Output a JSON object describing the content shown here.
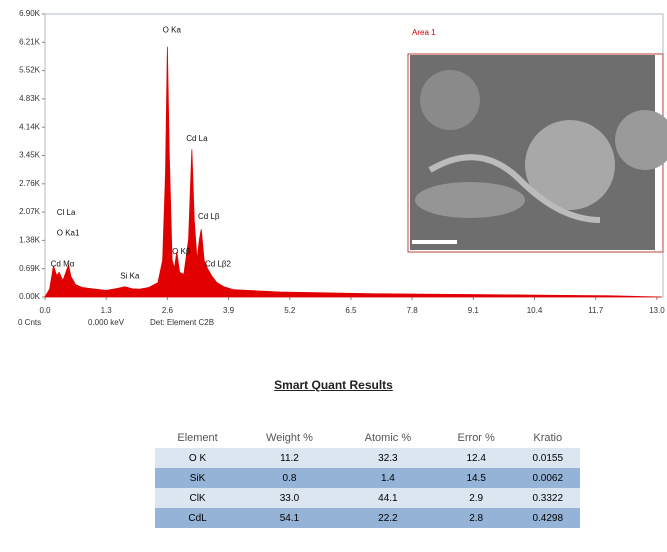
{
  "chart_data": {
    "type": "area",
    "color": "#e00000",
    "x": [
      0.0,
      0.1,
      0.18,
      0.25,
      0.3,
      0.38,
      0.5,
      0.55,
      0.65,
      0.8,
      1.0,
      1.3,
      1.5,
      1.7,
      1.85,
      2.0,
      2.2,
      2.4,
      2.5,
      2.56,
      2.6,
      2.64,
      2.7,
      2.75,
      2.8,
      2.86,
      2.95,
      3.05,
      3.12,
      3.17,
      3.23,
      3.28,
      3.32,
      3.38,
      3.45,
      3.55,
      3.65,
      3.8,
      4.0,
      4.5,
      5.0,
      6.0,
      7.0,
      8.0,
      9.0,
      10.0,
      11.0,
      12.0,
      13.1
    ],
    "values": [
      0,
      200,
      760,
      520,
      600,
      400,
      780,
      500,
      300,
      230,
      200,
      160,
      200,
      250,
      200,
      190,
      230,
      350,
      900,
      3000,
      6100,
      3500,
      900,
      700,
      1100,
      600,
      550,
      1400,
      3600,
      1900,
      900,
      1400,
      1650,
      900,
      700,
      500,
      350,
      250,
      180,
      150,
      120,
      100,
      80,
      70,
      60,
      50,
      40,
      30,
      0
    ],
    "xlim": [
      0,
      13.13
    ],
    "ylim": [
      0,
      6900
    ],
    "xticks": [
      {
        "value": 0,
        "label": "0.0"
      },
      1.3,
      2.6,
      3.9,
      5.2,
      6.5,
      7.8,
      9.1,
      10.4,
      11.7,
      {
        "value": 13,
        "label": "13.0"
      }
    ],
    "yticks": [
      {
        "value": 0,
        "label": "0.00K"
      },
      {
        "value": 690,
        "label": "0.69K"
      },
      {
        "value": 1380,
        "label": "1.38K"
      },
      {
        "value": 2070,
        "label": "2.07K"
      },
      {
        "value": 2760,
        "label": "2.76K"
      },
      {
        "value": 3450,
        "label": "3.45K"
      },
      {
        "value": 4140,
        "label": "4.14K"
      },
      {
        "value": 4830,
        "label": "4.83K"
      },
      {
        "value": 5520,
        "label": "5.52K"
      },
      {
        "value": 6210,
        "label": "6.21K"
      },
      {
        "value": 6900,
        "label": "6.90K"
      }
    ],
    "annotations": [
      {
        "text": "O Ka",
        "x": 2.5,
        "y": 6500
      },
      {
        "text": "Cd La",
        "x": 3.0,
        "y": 3850
      },
      {
        "text": "Cd Lβ",
        "x": 3.25,
        "y": 1950
      },
      {
        "text": "Cl La",
        "x": 0.25,
        "y": 2050
      },
      {
        "text": "O Ka1",
        "x": 0.25,
        "y": 1550
      },
      {
        "text": "Cd Mα",
        "x": 0.12,
        "y": 800
      },
      {
        "text": "Si Ka",
        "x": 1.6,
        "y": 500
      },
      {
        "text": "O Kβ",
        "x": 2.7,
        "y": 1100
      },
      {
        "text": "Cd Lβ2",
        "x": 3.4,
        "y": 800
      }
    ],
    "inset_label": "Area 1",
    "footer": [
      "0 Cnts",
      "0.000 keV",
      "Det: Element C2B"
    ]
  },
  "results": {
    "title": "Smart Quant Results",
    "columns": [
      "Element",
      "Weight %",
      "Atomic %",
      "Error %",
      "Kratio"
    ],
    "rows": [
      [
        "O K",
        "11.2",
        "32.3",
        "12.4",
        "0.0155"
      ],
      [
        "SiK",
        "0.8",
        "1.4",
        "14.5",
        "0.0062"
      ],
      [
        "ClK",
        "33.0",
        "44.1",
        "2.9",
        "0.3322"
      ],
      [
        "CdL",
        "54.1",
        "22.2",
        "2.8",
        "0.4298"
      ]
    ]
  }
}
